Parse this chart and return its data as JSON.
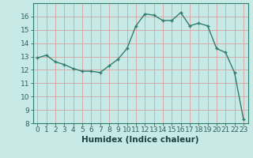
{
  "x": [
    0,
    1,
    2,
    3,
    4,
    5,
    6,
    7,
    8,
    9,
    10,
    11,
    12,
    13,
    14,
    15,
    16,
    17,
    18,
    19,
    20,
    21,
    22,
    23
  ],
  "y": [
    12.9,
    13.1,
    12.6,
    12.4,
    12.1,
    11.9,
    11.9,
    11.8,
    12.3,
    12.8,
    13.6,
    15.3,
    16.2,
    16.1,
    15.7,
    15.7,
    16.3,
    15.3,
    15.5,
    15.3,
    13.6,
    13.3,
    11.8,
    8.3
  ],
  "line_color": "#2e7d6e",
  "marker": "+",
  "marker_color": "#2e7d6e",
  "bg_color": "#c8eae6",
  "grid_color": "#d9a0a0",
  "xlabel": "Humidex (Indice chaleur)",
  "xlim": [
    -0.5,
    23.5
  ],
  "ylim": [
    8,
    17
  ],
  "yticks": [
    8,
    9,
    10,
    11,
    12,
    13,
    14,
    15,
    16
  ],
  "xticks": [
    0,
    1,
    2,
    3,
    4,
    5,
    6,
    7,
    8,
    9,
    10,
    11,
    12,
    13,
    14,
    15,
    16,
    17,
    18,
    19,
    20,
    21,
    22,
    23
  ],
  "xlabel_fontsize": 7.5,
  "tick_fontsize": 6.5,
  "line_width": 1.0,
  "marker_size": 3.5
}
